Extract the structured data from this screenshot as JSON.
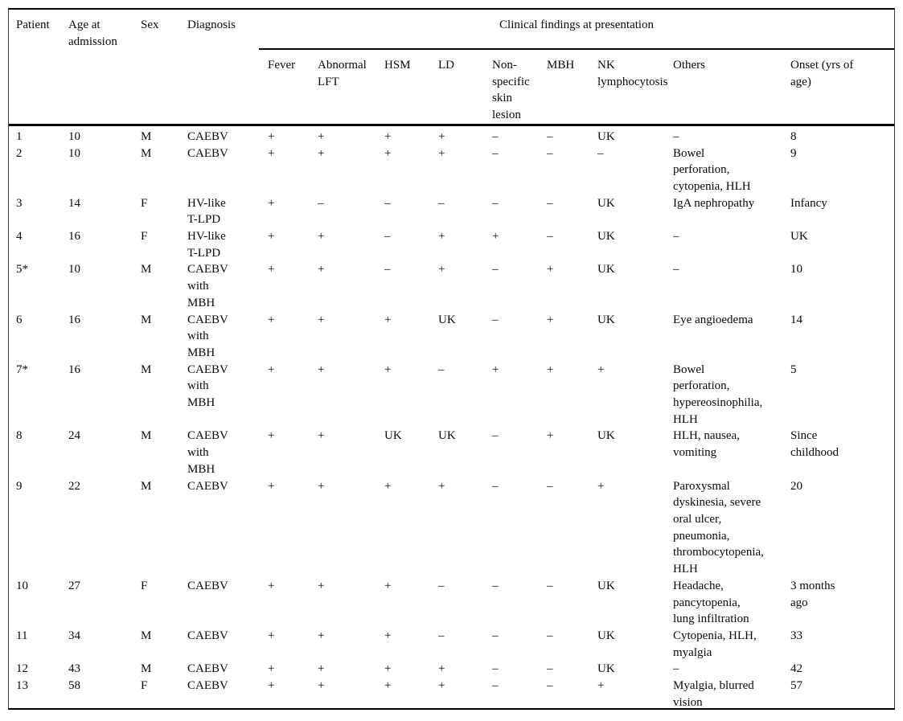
{
  "table": {
    "group_header": "Clinical findings at presentation",
    "columns": [
      {
        "key": "patient",
        "label": "Patient"
      },
      {
        "key": "age",
        "label": "Age at\nadmission"
      },
      {
        "key": "sex",
        "label": "Sex"
      },
      {
        "key": "diagnosis",
        "label": "Diagnosis"
      },
      {
        "key": "fever",
        "label": "Fever"
      },
      {
        "key": "lft",
        "label": "Abnormal\nLFT"
      },
      {
        "key": "hsm",
        "label": "HSM"
      },
      {
        "key": "ld",
        "label": "LD"
      },
      {
        "key": "skin",
        "label": "Non-\nspecific\nskin\nlesion"
      },
      {
        "key": "mbh",
        "label": "MBH"
      },
      {
        "key": "nk",
        "label": "NK\nlymphocytosis"
      },
      {
        "key": "others",
        "label": "Others"
      },
      {
        "key": "onset",
        "label": "Onset (yrs of\nage)"
      }
    ],
    "rows": [
      [
        "1",
        "10",
        "M",
        "CAEBV",
        "+",
        "+",
        "+",
        "+",
        "–",
        "–",
        "UK",
        "–",
        "8"
      ],
      [
        "2",
        "10",
        "M",
        "CAEBV",
        "+",
        "+",
        "+",
        "+",
        "–",
        "–",
        "–",
        "Bowel\nperforation,\ncytopenia, HLH",
        "9"
      ],
      [
        "3",
        "14",
        "F",
        "HV-like\nT-LPD",
        "+",
        "–",
        "–",
        "–",
        "–",
        "–",
        "UK",
        "IgA nephropathy",
        "Infancy"
      ],
      [
        "4",
        "16",
        "F",
        "HV-like\nT-LPD",
        "+",
        "+",
        "–",
        "+",
        "+",
        "–",
        "UK",
        "–",
        "UK"
      ],
      [
        "5*",
        "10",
        "M",
        "CAEBV\nwith\nMBH",
        "+",
        "+",
        "–",
        "+",
        "–",
        "+",
        "UK",
        "–",
        "10"
      ],
      [
        "6",
        "16",
        "M",
        "CAEBV\nwith\nMBH",
        "+",
        "+",
        "+",
        "UK",
        "–",
        "+",
        "UK",
        "Eye angioedema",
        "14"
      ],
      [
        "7*",
        "16",
        "M",
        "CAEBV\nwith\nMBH",
        "+",
        "+",
        "+",
        "–",
        "+",
        "+",
        "+",
        "Bowel\nperforation,\nhypereosinophilia,\nHLH",
        "5"
      ],
      [
        "8",
        "24",
        "M",
        "CAEBV\nwith\nMBH",
        "+",
        "+",
        "UK",
        "UK",
        "–",
        "+",
        "UK",
        "HLH, nausea,\nvomiting",
        "Since\nchildhood"
      ],
      [
        "9",
        "22",
        "M",
        "CAEBV",
        "+",
        "+",
        "+",
        "+",
        "–",
        "–",
        "+",
        "Paroxysmal\ndyskinesia, severe\noral ulcer,\npneumonia,\nthrombocytopenia,\nHLH",
        "20"
      ],
      [
        "10",
        "27",
        "F",
        "CAEBV",
        "+",
        "+",
        "+",
        "–",
        "–",
        "–",
        "UK",
        "Headache,\npancytopenia,\nlung infiltration",
        "3 months\nago"
      ],
      [
        "11",
        "34",
        "M",
        "CAEBV",
        "+",
        "+",
        "+",
        "–",
        "–",
        "–",
        "UK",
        "Cytopenia, HLH,\nmyalgia",
        "33"
      ],
      [
        "12",
        "43",
        "M",
        "CAEBV",
        "+",
        "+",
        "+",
        "+",
        "–",
        "–",
        "UK",
        "–",
        "42"
      ],
      [
        "13",
        "58",
        "F",
        "CAEBV",
        "+",
        "+",
        "+",
        "+",
        "–",
        "–",
        "+",
        "Myalgia, blurred\nvision",
        "57"
      ]
    ]
  }
}
